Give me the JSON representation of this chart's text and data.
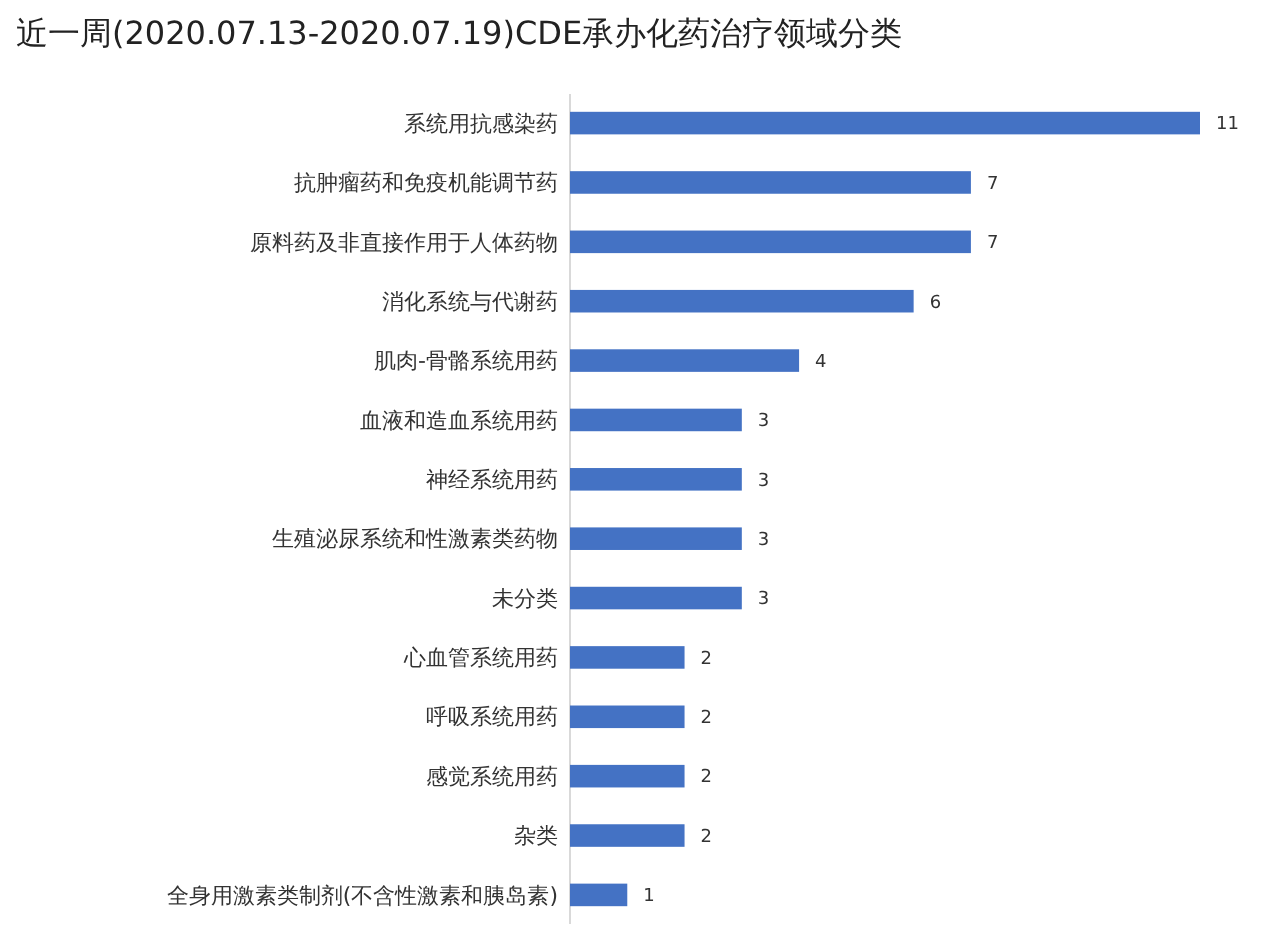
{
  "chart_data": {
    "type": "bar",
    "orientation": "horizontal",
    "title": "近一周(2020.07.13-2020.07.19)CDE承办化药治疗领域分类",
    "categories": [
      "系统用抗感染药",
      "抗肿瘤药和免疫机能调节药",
      "原料药及非直接作用于人体药物",
      "消化系统与代谢药",
      "肌肉-骨骼系统用药",
      "血液和造血系统用药",
      "神经系统用药",
      "生殖泌尿系统和性激素类药物",
      "未分类",
      "心血管系统用药",
      "呼吸系统用药",
      "感觉系统用药",
      "杂类",
      "全身用激素类制剂(不含性激素和胰岛素)"
    ],
    "values": [
      11,
      7,
      7,
      6,
      4,
      3,
      3,
      3,
      3,
      2,
      2,
      2,
      2,
      1
    ],
    "color": "#4472c4",
    "data_labels": true
  }
}
